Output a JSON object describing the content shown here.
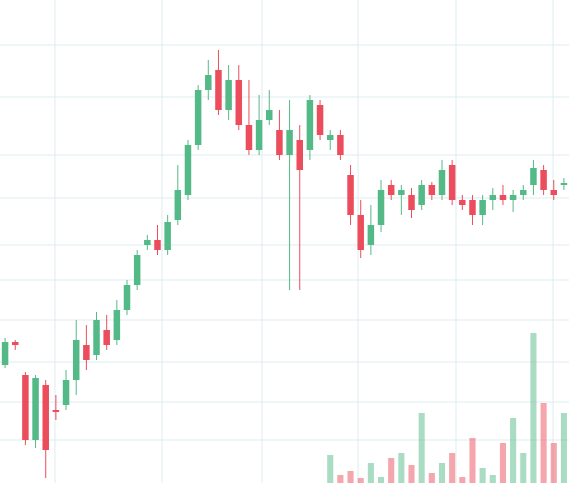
{
  "chart_data": {
    "type": "candlestick",
    "open": [
      118,
      141,
      108,
      43,
      98,
      73,
      78,
      103,
      138,
      128,
      153,
      143,
      173,
      198,
      238,
      243,
      233,
      263,
      288,
      338,
      393,
      413,
      373,
      403,
      358,
      333,
      363,
      353,
      328,
      343,
      333,
      378,
      343,
      348,
      308,
      268,
      238,
      258,
      298,
      288,
      288,
      278,
      298,
      288,
      318,
      283,
      283,
      268,
      283,
      288,
      283,
      288,
      298,
      313,
      293,
      298
    ],
    "high": [
      145,
      143,
      111,
      108,
      103,
      88,
      113,
      163,
      158,
      171,
      168,
      183,
      203,
      233,
      248,
      258,
      268,
      318,
      343,
      398,
      423,
      433,
      418,
      418,
      403,
      388,
      393,
      373,
      383,
      358,
      388,
      383,
      353,
      353,
      318,
      283,
      278,
      303,
      303,
      298,
      295,
      303,
      301,
      323,
      323,
      288,
      288,
      288,
      295,
      298,
      293,
      298,
      323,
      318,
      303,
      305
    ],
    "low": [
      115,
      133,
      38,
      35,
      5,
      63,
      73,
      88,
      113,
      123,
      133,
      138,
      168,
      193,
      233,
      228,
      228,
      258,
      283,
      333,
      383,
      368,
      363,
      353,
      328,
      328,
      358,
      323,
      193,
      193,
      323,
      343,
      333,
      323,
      258,
      225,
      228,
      251,
      283,
      268,
      265,
      273,
      283,
      283,
      278,
      273,
      258,
      258,
      273,
      278,
      271,
      283,
      288,
      288,
      283,
      293
    ],
    "close": [
      141,
      138,
      43,
      105,
      33,
      71,
      103,
      143,
      123,
      163,
      138,
      173,
      198,
      228,
      243,
      233,
      261,
      293,
      338,
      393,
      408,
      373,
      403,
      358,
      333,
      363,
      373,
      328,
      353,
      313,
      383,
      348,
      348,
      328,
      268,
      233,
      258,
      293,
      288,
      293,
      273,
      298,
      288,
      313,
      283,
      278,
      268,
      283,
      288,
      283,
      288,
      293,
      315,
      293,
      288,
      300
    ],
    "volume": [
      null,
      null,
      null,
      null,
      null,
      null,
      null,
      null,
      null,
      null,
      null,
      null,
      null,
      null,
      null,
      null,
      null,
      null,
      null,
      null,
      null,
      null,
      null,
      null,
      null,
      null,
      null,
      null,
      null,
      null,
      null,
      null,
      28,
      8,
      12,
      5,
      20,
      6,
      25,
      30,
      18,
      70,
      10,
      20,
      30,
      6,
      45,
      15,
      8,
      40,
      65,
      30,
      150,
      80,
      40,
      70
    ],
    "up_color": "#53b987",
    "down_color": "#eb4d5c",
    "xlim": [
      0,
      56
    ],
    "xticks": [
      5.41,
      15.94,
      25.79,
      35.24,
      44.88,
      54.43
    ],
    "ylim": [
      0,
      483
    ],
    "yticks": [
      43,
      81,
      121,
      163,
      203,
      238,
      285,
      328,
      386,
      438
    ],
    "y2lim": [
      0,
      483
    ],
    "grid": true
  }
}
